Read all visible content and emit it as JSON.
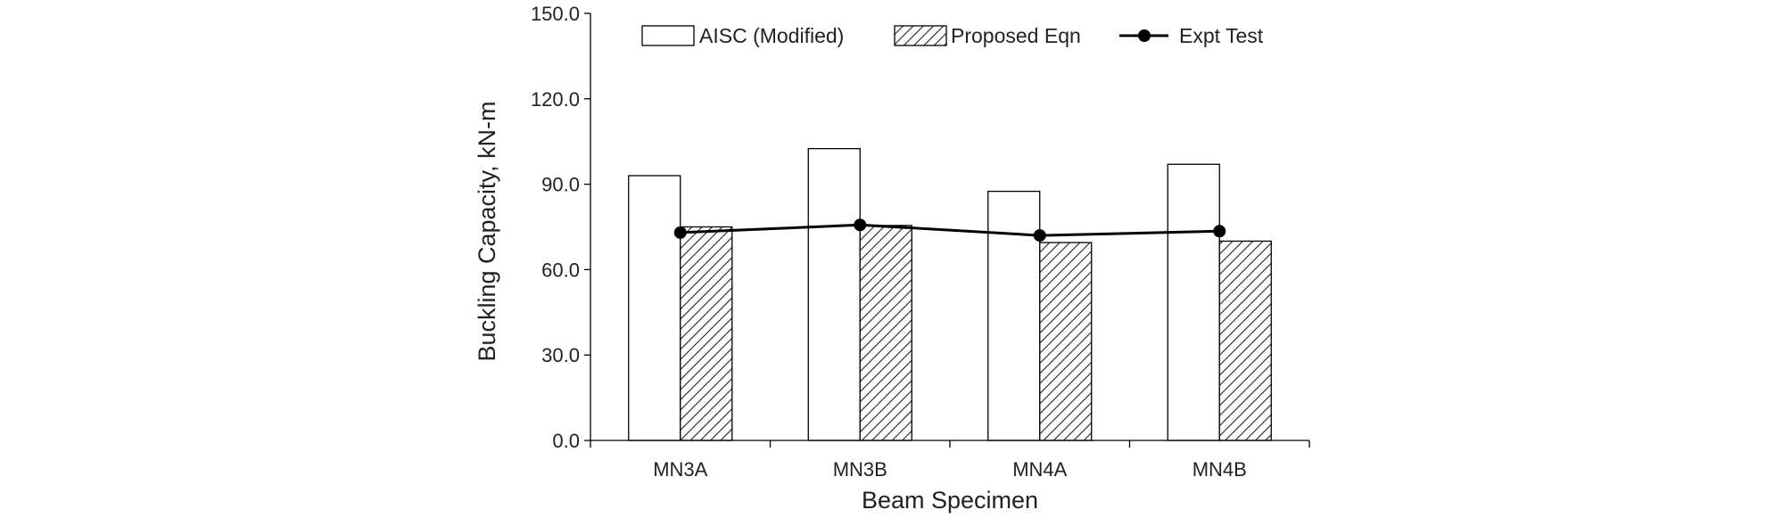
{
  "chart_data": {
    "type": "bar",
    "title": "",
    "xlabel": "Beam Specimen",
    "ylabel": "Buckling Capacity, kN-m",
    "categories": [
      "MN3A",
      "MN3B",
      "MN4A",
      "MN4B"
    ],
    "ylim": [
      0,
      150
    ],
    "yticks": [
      0,
      30,
      60,
      90,
      120,
      150
    ],
    "ytick_labels": [
      "0.0",
      "30.0",
      "60.0",
      "90.0",
      "120.0",
      "150.0"
    ],
    "grid": false,
    "legend_position": "top",
    "series": [
      {
        "name": "AISC (Modified)",
        "kind": "bar",
        "style": "hollow",
        "fill": "#ffffff",
        "stroke": "#000000",
        "values": [
          93.0,
          102.5,
          87.5,
          97.0
        ]
      },
      {
        "name": "Proposed Eqn",
        "kind": "bar",
        "style": "hatched",
        "fill": "#ffffff",
        "stroke": "#000000",
        "values": [
          75.0,
          75.5,
          69.5,
          70.0
        ]
      },
      {
        "name": "Expt Test",
        "kind": "line",
        "marker": "circle",
        "color": "#000000",
        "values": [
          73.0,
          75.7,
          72.0,
          73.5
        ]
      }
    ]
  }
}
